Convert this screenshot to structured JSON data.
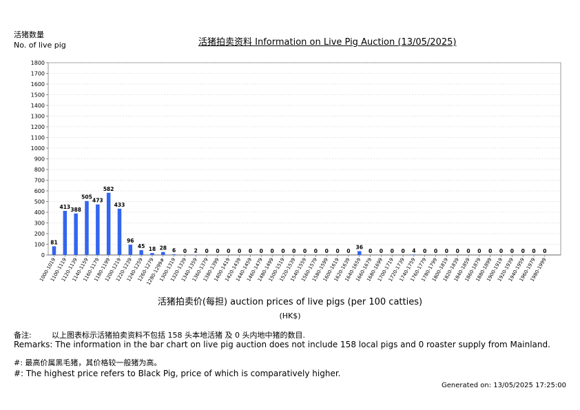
{
  "header": {
    "ylabel_cn": "活猪数量",
    "ylabel_en": "No. of live pig",
    "title": "活猪拍卖资料 Information on Live Pig Auction (13/05/2025)"
  },
  "footer": {
    "xlabel": "活猪拍卖价(每担) auction prices of live pigs (per 100 catties)",
    "unit": "(HK$)",
    "remark_cn_label": "备注:",
    "remark_cn": "以上图表标示活猪拍卖资料不包括 158 头本地活猪 及 0 头内地中猪的数目.",
    "remark_en": "Remarks: The information in the bar chart on live pig auction does not include 158 local pigs and 0 roaster supply from Mainland.",
    "note_cn": "#: 最高价属黑毛猪，其价格较一般猪为高。",
    "note_en": "#: The highest price refers to Black Pig, price of which is comparatively higher.",
    "generated": "Generated on: 13/05/2025 17:25:00"
  },
  "chart_data": {
    "type": "bar",
    "title": "活猪拍卖资料 Information on Live Pig Auction (13/05/2025)",
    "xlabel": "活猪拍卖价(每担) auction prices of live pigs (per 100 catties)",
    "ylabel": "活猪数量 No. of live pig",
    "ylim": [
      0,
      1800
    ],
    "yticks": [
      "0",
      "100",
      "200",
      "300",
      "400",
      "500",
      "600",
      "700",
      "800",
      "900",
      "1000",
      "1100",
      "1200",
      "1300",
      "1400",
      "1500",
      "1600",
      "1700",
      "1800"
    ],
    "grid": true,
    "bar_color": "#3366ee",
    "categories": [
      "1000-1019",
      "1100-1119",
      "1120-1139",
      "1140-1159",
      "1160-1179",
      "1180-1199",
      "1200-1219",
      "1220-1239",
      "1240-1259",
      "1260-1279",
      "1280-1299#",
      "1300-1319",
      "1320-1339",
      "1340-1359",
      "1360-1379",
      "1380-1399",
      "1400-1419",
      "1420-1439",
      "1440-1459",
      "1460-1479",
      "1480-1499",
      "1500-1519",
      "1520-1539",
      "1540-1559",
      "1560-1579",
      "1580-1599",
      "1600-1619",
      "1620-1639",
      "1640-1659",
      "1660-1679",
      "1680-1699",
      "1700-1719",
      "1720-1739",
      "1740-1759",
      "1760-1779",
      "1780-1799",
      "1800-1819",
      "1820-1839",
      "1840-1859",
      "1860-1879",
      "1880-1899",
      "1900-1919",
      "1920-1939",
      "1940-1959",
      "1960-1979",
      "1980-1999"
    ],
    "values": [
      81,
      413,
      388,
      505,
      473,
      582,
      433,
      96,
      45,
      18,
      28,
      6,
      0,
      2,
      0,
      0,
      0,
      0,
      0,
      0,
      0,
      0,
      0,
      0,
      0,
      0,
      0,
      0,
      36,
      0,
      0,
      0,
      0,
      4,
      0,
      0,
      0,
      0,
      0,
      0,
      0,
      0,
      0,
      0,
      0,
      0
    ]
  }
}
